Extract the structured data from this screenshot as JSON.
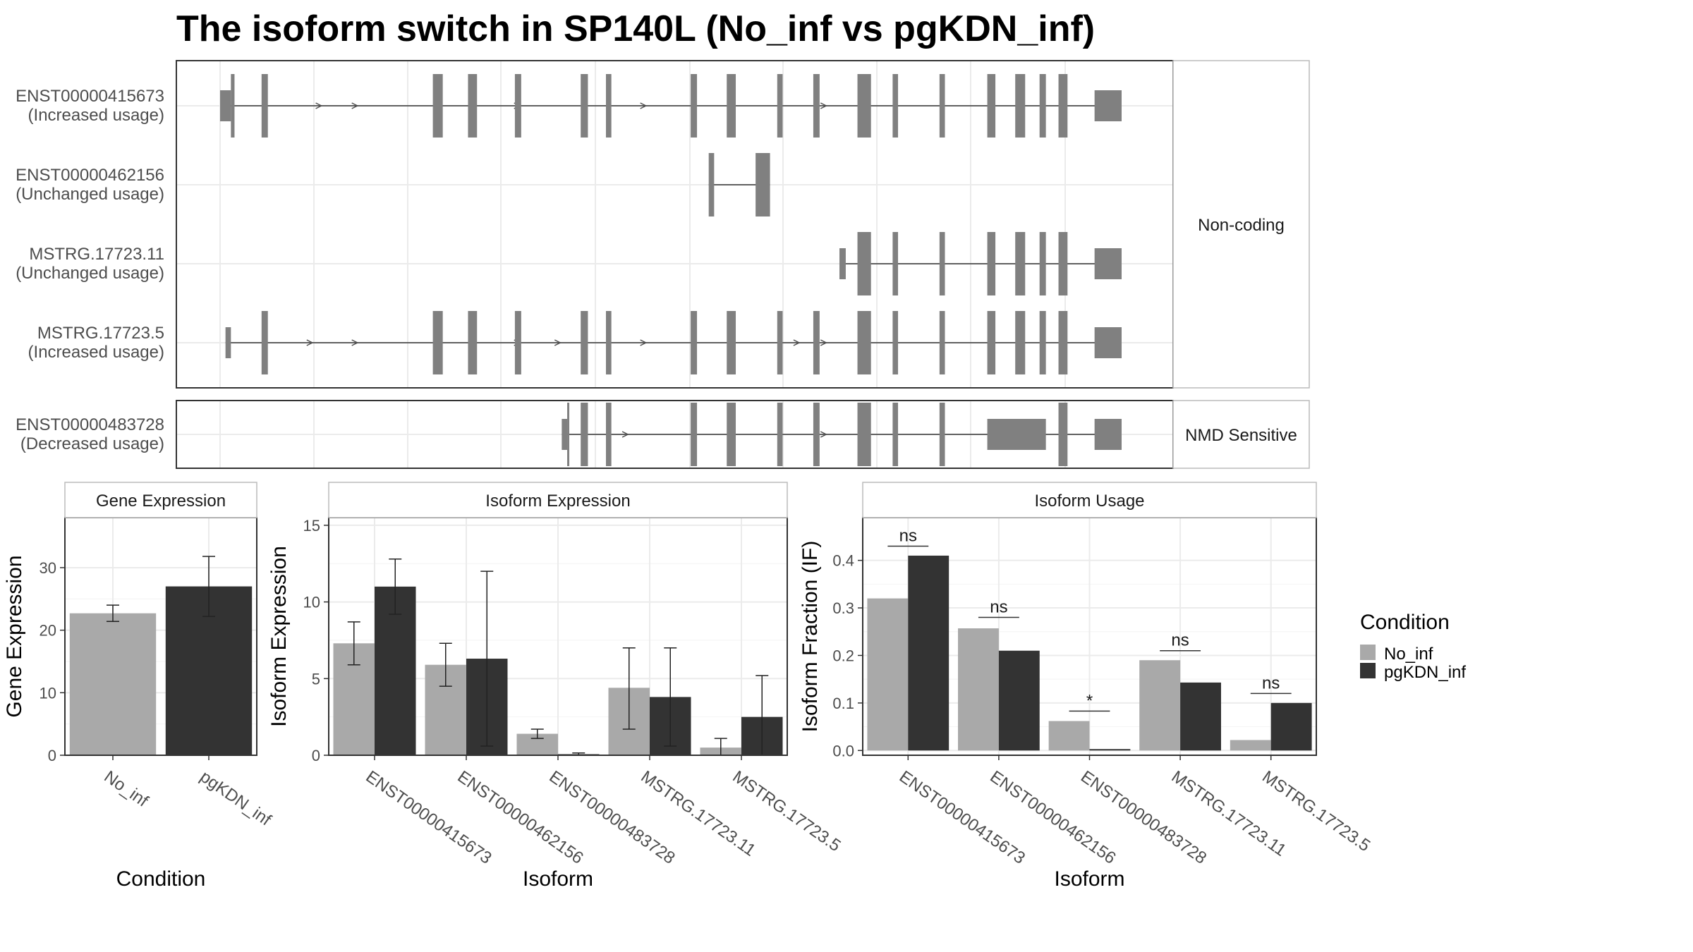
{
  "title": "The isoform switch in SP140L (No_inf vs pgKDN_inf)",
  "colors": {
    "No_inf": "#a9a9a9",
    "pgKDN_inf": "#333333",
    "exon": "#808080"
  },
  "chart_data": [
    {
      "type": "transcript-structure",
      "genomic_range": [
        0,
        100
      ],
      "panels": [
        {
          "label": "Non-coding",
          "transcripts": [
            {
              "id": "ENST00000415673",
              "usage": "(Increased usage)",
              "exons": [
                [
                  0,
                  1.2
                ],
                [
                  1.2,
                  1.6
                ],
                [
                  4.6,
                  5.3
                ],
                [
                  23.6,
                  24.7
                ],
                [
                  27.5,
                  28.5
                ],
                [
                  32.7,
                  33.4
                ],
                [
                  40.0,
                  40.8
                ],
                [
                  42.8,
                  43.4
                ],
                [
                  52.2,
                  52.9
                ],
                [
                  56.2,
                  57.2
                ],
                [
                  61.8,
                  62.4
                ],
                [
                  65.8,
                  66.5
                ],
                [
                  70.7,
                  72.2
                ],
                [
                  74.6,
                  75.2
                ],
                [
                  79.8,
                  80.4
                ],
                [
                  85.1,
                  86.0
                ],
                [
                  88.2,
                  89.3
                ],
                [
                  90.9,
                  91.6
                ],
                [
                  93.0,
                  94.0
                ],
                [
                  97.0,
                  100
                ]
              ],
              "arrows": [
                11,
                15,
                33,
                47,
                67
              ]
            },
            {
              "id": "ENST00000462156",
              "usage": "(Unchanged usage)",
              "exons": [
                [
                  54.2,
                  54.8
                ],
                [
                  59.4,
                  61.0
                ]
              ],
              "arrows": []
            },
            {
              "id": "MSTRG.17723.11",
              "usage": "(Unchanged usage)",
              "exons": [
                [
                  68.7,
                  69.4
                ],
                [
                  70.7,
                  72.2
                ],
                [
                  74.6,
                  75.2
                ],
                [
                  79.8,
                  80.4
                ],
                [
                  85.1,
                  86.0
                ],
                [
                  88.2,
                  89.3
                ],
                [
                  90.9,
                  91.6
                ],
                [
                  93.0,
                  94.0
                ],
                [
                  97.0,
                  100
                ]
              ],
              "arrows": []
            },
            {
              "id": "MSTRG.17723.5",
              "usage": "(Increased usage)",
              "exons": [
                [
                  0.6,
                  1.2
                ],
                [
                  4.6,
                  5.3
                ],
                [
                  23.6,
                  24.7
                ],
                [
                  27.5,
                  28.5
                ],
                [
                  32.7,
                  33.4
                ],
                [
                  40.0,
                  40.8
                ],
                [
                  42.8,
                  43.4
                ],
                [
                  52.2,
                  52.9
                ],
                [
                  56.2,
                  57.2
                ],
                [
                  61.8,
                  62.4
                ],
                [
                  65.8,
                  66.5
                ],
                [
                  70.7,
                  72.2
                ],
                [
                  74.6,
                  75.2
                ],
                [
                  79.8,
                  80.4
                ],
                [
                  85.1,
                  86.0
                ],
                [
                  88.2,
                  89.3
                ],
                [
                  90.9,
                  91.6
                ],
                [
                  93.0,
                  94.0
                ],
                [
                  97.0,
                  100
                ]
              ],
              "arrows": [
                10,
                15,
                33,
                37.5,
                47,
                64,
                67
              ]
            }
          ]
        },
        {
          "label": "NMD Sensitive",
          "transcripts": [
            {
              "id": "ENST00000483728",
              "usage": "(Decreased usage)",
              "exons": [
                [
                  37.9,
                  38.5
                ],
                [
                  38.5,
                  38.7
                ],
                [
                  40.0,
                  40.8
                ],
                [
                  42.8,
                  43.4
                ],
                [
                  52.2,
                  52.9
                ],
                [
                  56.2,
                  57.2
                ],
                [
                  61.8,
                  62.4
                ],
                [
                  65.8,
                  66.5
                ],
                [
                  70.7,
                  72.2
                ],
                [
                  74.6,
                  75.2
                ],
                [
                  79.8,
                  80.4
                ],
                [
                  85.1,
                  91.6
                ],
                [
                  93.0,
                  94.0
                ],
                [
                  97.0,
                  100
                ]
              ],
              "arrows": [
                45,
                67
              ]
            }
          ]
        }
      ]
    },
    {
      "type": "bar",
      "title": "Gene Expression",
      "xlabel": "Condition",
      "ylabel": "Gene Expression",
      "ylim": [
        0,
        38
      ],
      "yticks": [
        0,
        10,
        20,
        30
      ],
      "categories": [
        "No_inf",
        "pgKDN_inf"
      ],
      "values": [
        22.7,
        27.0
      ],
      "error": [
        [
          21.4,
          24.0
        ],
        [
          22.2,
          31.8
        ]
      ]
    },
    {
      "type": "bar",
      "title": "Isoform Expression",
      "xlabel": "Isoform",
      "ylabel": "Isoform Expression",
      "ylim": [
        0,
        15.5
      ],
      "yticks": [
        0,
        5,
        10,
        15
      ],
      "categories": [
        "ENST00000415673",
        "ENST00000462156",
        "ENST00000483728",
        "MSTRG.17723.11",
        "MSTRG.17723.5"
      ],
      "series": [
        {
          "name": "No_inf",
          "values": [
            7.3,
            5.9,
            1.4,
            4.4,
            0.5
          ],
          "error": [
            [
              5.9,
              8.7
            ],
            [
              4.5,
              7.3
            ],
            [
              1.1,
              1.7
            ],
            [
              1.7,
              7.0
            ],
            [
              0,
              1.1
            ]
          ]
        },
        {
          "name": "pgKDN_inf",
          "values": [
            11.0,
            6.3,
            0.07,
            3.8,
            2.5
          ],
          "error": [
            [
              9.2,
              12.8
            ],
            [
              0.6,
              12.0
            ],
            [
              0.0,
              0.15
            ],
            [
              0.6,
              7.0
            ],
            [
              0,
              5.2
            ]
          ]
        }
      ]
    },
    {
      "type": "bar",
      "title": "Isoform Usage",
      "xlabel": "Isoform",
      "ylabel": "Isoform Fraction (IF)",
      "ylim": [
        -0.01,
        0.49
      ],
      "yticks": [
        0.0,
        0.1,
        0.2,
        0.3,
        0.4
      ],
      "ytick_labels": [
        "0.0",
        "0.1",
        "0.2",
        "0.3",
        "0.4"
      ],
      "categories": [
        "ENST00000415673",
        "ENST00000462156",
        "ENST00000483728",
        "MSTRG.17723.11",
        "MSTRG.17723.5"
      ],
      "series": [
        {
          "name": "No_inf",
          "values": [
            0.32,
            0.257,
            0.062,
            0.19,
            0.022
          ]
        },
        {
          "name": "pgKDN_inf",
          "values": [
            0.41,
            0.21,
            0.003,
            0.143,
            0.1
          ]
        }
      ],
      "significance": [
        "ns",
        "ns",
        "*",
        "ns",
        "ns"
      ],
      "significance_y": [
        0.43,
        0.28,
        0.083,
        0.21,
        0.12
      ]
    }
  ],
  "legend": {
    "title": "Condition",
    "items": [
      "No_inf",
      "pgKDN_inf"
    ]
  }
}
